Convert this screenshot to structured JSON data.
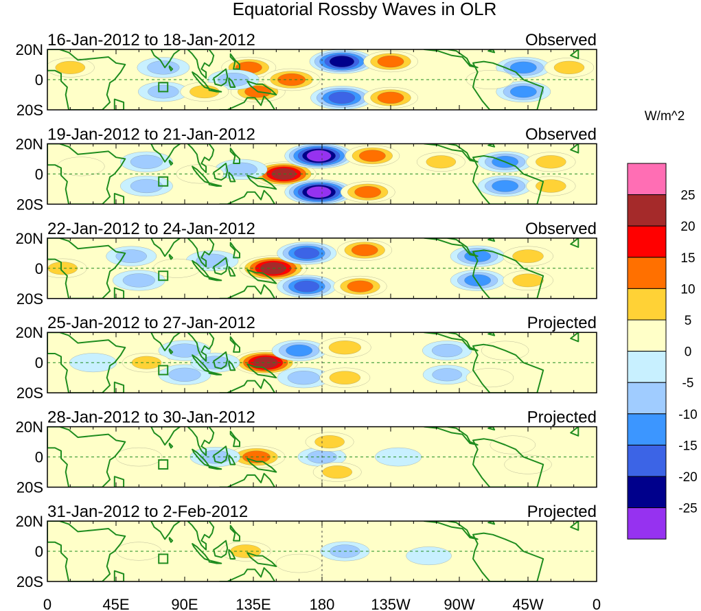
{
  "figure": {
    "title": "Equatorial Rossby Waves in OLR",
    "colorbar_unit": "W/m^2",
    "colorbar_labels": [
      "25",
      "20",
      "15",
      "10",
      "5",
      "0",
      "-5",
      "-10",
      "-15",
      "-20",
      "-25"
    ],
    "colorbar_colors": [
      "#ff6eb4",
      "#a52a2a",
      "#ff0000",
      "#ff7000",
      "#ffd236",
      "#ffffc8",
      "#c8f0ff",
      "#a0ccff",
      "#3c96ff",
      "#3c64e6",
      "#00008c",
      "#9632f0"
    ],
    "lat_labels": [
      "20N",
      "0",
      "20S"
    ],
    "lon_labels": [
      "0",
      "45E",
      "90E",
      "135E",
      "180",
      "135W",
      "90W",
      "45W",
      "0"
    ],
    "map_colors": {
      "land": "#1e8c1e",
      "equator": "#1e8c1e"
    }
  },
  "chart_data": {
    "type": "heatmap",
    "title": "Equatorial Rossby Waves in OLR",
    "units": "W/m^2",
    "x_range_deg_east": [
      0,
      360
    ],
    "y_range_deg": [
      -20,
      20
    ],
    "contour_levels": [
      -25,
      -20,
      -15,
      -10,
      -5,
      0,
      5,
      10,
      15,
      20,
      25
    ],
    "panels": [
      {
        "date_range": "16-Jan-2012 to 18-Jan-2012",
        "status": "Observed",
        "features": [
          {
            "lon": 132,
            "lat": 8,
            "value": 12
          },
          {
            "lon": 138,
            "lat": -8,
            "value": 12
          },
          {
            "lon": 160,
            "lat": 0,
            "value": 15
          },
          {
            "lon": 122,
            "lat": 0,
            "value": -9
          },
          {
            "lon": 76,
            "lat": 8,
            "value": -10
          },
          {
            "lon": 76,
            "lat": -8,
            "value": -8
          },
          {
            "lon": 193,
            "lat": 12,
            "value": -22
          },
          {
            "lon": 193,
            "lat": -12,
            "value": -20
          },
          {
            "lon": 225,
            "lat": 12,
            "value": 12
          },
          {
            "lon": 225,
            "lat": -12,
            "value": 12
          },
          {
            "lon": 312,
            "lat": 8,
            "value": -12
          },
          {
            "lon": 312,
            "lat": -8,
            "value": -12
          },
          {
            "lon": 290,
            "lat": 0,
            "value": 5
          },
          {
            "lon": 15,
            "lat": 8,
            "value": 6
          },
          {
            "lon": 103,
            "lat": -8,
            "value": 6
          },
          {
            "lon": 342,
            "lat": 8,
            "value": 7
          }
        ]
      },
      {
        "date_range": "19-Jan-2012 to 21-Jan-2012",
        "status": "Observed",
        "features": [
          {
            "lon": 155,
            "lat": 0,
            "value": 22
          },
          {
            "lon": 178,
            "lat": 12,
            "value": -26
          },
          {
            "lon": 178,
            "lat": -12,
            "value": -26
          },
          {
            "lon": 213,
            "lat": 12,
            "value": 12
          },
          {
            "lon": 210,
            "lat": -12,
            "value": 12
          },
          {
            "lon": 258,
            "lat": 8,
            "value": 6
          },
          {
            "lon": 300,
            "lat": 8,
            "value": -12
          },
          {
            "lon": 300,
            "lat": -8,
            "value": -12
          },
          {
            "lon": 330,
            "lat": 8,
            "value": 7
          },
          {
            "lon": 330,
            "lat": -8,
            "value": 7
          },
          {
            "lon": 65,
            "lat": 8,
            "value": -10
          },
          {
            "lon": 65,
            "lat": -8,
            "value": -10
          },
          {
            "lon": 127,
            "lat": 3,
            "value": -10
          },
          {
            "lon": 22,
            "lat": 5,
            "value": 5
          },
          {
            "lon": 100,
            "lat": 0,
            "value": 5
          }
        ]
      },
      {
        "date_range": "22-Jan-2012 to 24-Jan-2012",
        "status": "Observed",
        "features": [
          {
            "lon": 148,
            "lat": 0,
            "value": 25
          },
          {
            "lon": 170,
            "lat": 10,
            "value": -17
          },
          {
            "lon": 170,
            "lat": -12,
            "value": -17
          },
          {
            "lon": 208,
            "lat": 12,
            "value": 12
          },
          {
            "lon": 205,
            "lat": -12,
            "value": 11
          },
          {
            "lon": 282,
            "lat": 8,
            "value": -12
          },
          {
            "lon": 282,
            "lat": -8,
            "value": -12
          },
          {
            "lon": 315,
            "lat": 8,
            "value": 8
          },
          {
            "lon": 315,
            "lat": -8,
            "value": 8
          },
          {
            "lon": 108,
            "lat": 5,
            "value": -10
          },
          {
            "lon": 60,
            "lat": -8,
            "value": -10
          },
          {
            "lon": 55,
            "lat": 8,
            "value": -8
          },
          {
            "lon": 10,
            "lat": 0,
            "value": 6
          },
          {
            "lon": 85,
            "lat": 0,
            "value": 5
          }
        ]
      },
      {
        "date_range": "25-Jan-2012 to 27-Jan-2012",
        "status": "Projected",
        "features": [
          {
            "lon": 143,
            "lat": 0,
            "value": 22
          },
          {
            "lon": 165,
            "lat": 8,
            "value": -12
          },
          {
            "lon": 168,
            "lat": -10,
            "value": -10
          },
          {
            "lon": 195,
            "lat": 10,
            "value": 10
          },
          {
            "lon": 195,
            "lat": -10,
            "value": 8
          },
          {
            "lon": 90,
            "lat": 8,
            "value": -10
          },
          {
            "lon": 90,
            "lat": -8,
            "value": -10
          },
          {
            "lon": 65,
            "lat": 0,
            "value": 6
          },
          {
            "lon": 110,
            "lat": 0,
            "value": -7
          },
          {
            "lon": 262,
            "lat": 8,
            "value": -7
          },
          {
            "lon": 262,
            "lat": -8,
            "value": -6
          },
          {
            "lon": 300,
            "lat": 8,
            "value": 5
          },
          {
            "lon": 290,
            "lat": -10,
            "value": 5
          },
          {
            "lon": 30,
            "lat": 0,
            "value": -5
          }
        ]
      },
      {
        "date_range": "28-Jan-2012 to 30-Jan-2012",
        "status": "Projected",
        "features": [
          {
            "lon": 137,
            "lat": 0,
            "value": 15
          },
          {
            "lon": 110,
            "lat": 0,
            "value": -8
          },
          {
            "lon": 180,
            "lat": 0,
            "value": -6
          },
          {
            "lon": 185,
            "lat": 10,
            "value": 6
          },
          {
            "lon": 190,
            "lat": -10,
            "value": 6
          },
          {
            "lon": 230,
            "lat": 0,
            "value": -4
          },
          {
            "lon": 60,
            "lat": 0,
            "value": 4
          },
          {
            "lon": 315,
            "lat": -5,
            "value": 5
          },
          {
            "lon": 305,
            "lat": 8,
            "value": 3
          }
        ]
      },
      {
        "date_range": "31-Jan-2012 to 2-Feb-2012",
        "status": "Projected",
        "features": [
          {
            "lon": 130,
            "lat": 0,
            "value": 8
          },
          {
            "lon": 195,
            "lat": 0,
            "value": -7
          },
          {
            "lon": 165,
            "lat": -8,
            "value": 4
          },
          {
            "lon": 60,
            "lat": 0,
            "value": 3
          },
          {
            "lon": 250,
            "lat": -3,
            "value": -3
          }
        ]
      }
    ]
  }
}
